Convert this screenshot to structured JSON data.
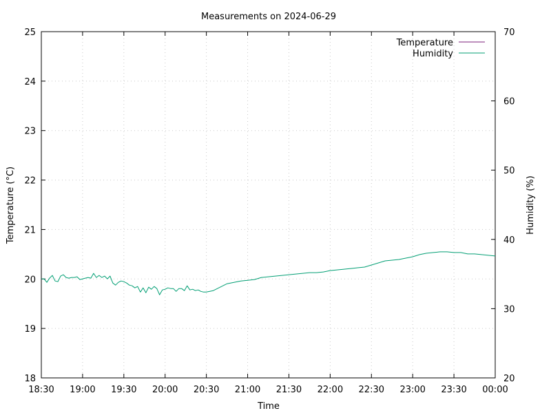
{
  "chart_data": {
    "type": "line",
    "title": "Measurements on 2024-06-29",
    "xlabel": "Time",
    "ylabel": "Temperature (°C)",
    "y2label": "Humidity (%)",
    "x_ticks": [
      "18:30",
      "19:00",
      "19:30",
      "20:00",
      "20:30",
      "21:00",
      "21:30",
      "22:00",
      "22:30",
      "23:00",
      "23:30",
      "00:00"
    ],
    "x_range": [
      "18:30",
      "00:00"
    ],
    "ylim": [
      18,
      25
    ],
    "y_ticks": [
      18,
      19,
      20,
      21,
      22,
      23,
      24,
      25
    ],
    "y2lim": [
      20,
      70
    ],
    "y2_ticks": [
      20,
      30,
      40,
      50,
      60,
      70
    ],
    "grid": true,
    "legend_position": "top-right",
    "series": [
      {
        "name": "Temperature",
        "axis": "left",
        "color": "#7b1e7a",
        "x": [],
        "values": []
      },
      {
        "name": "Humidity",
        "axis": "right",
        "color": "#009e73",
        "x": [
          "18:30",
          "18:32",
          "18:34",
          "18:36",
          "18:38",
          "18:40",
          "18:42",
          "18:44",
          "18:46",
          "18:48",
          "18:50",
          "18:52",
          "18:54",
          "18:56",
          "18:58",
          "19:00",
          "19:02",
          "19:04",
          "19:06",
          "19:08",
          "19:10",
          "19:12",
          "19:14",
          "19:16",
          "19:18",
          "19:20",
          "19:22",
          "19:24",
          "19:26",
          "19:28",
          "19:30",
          "19:32",
          "19:34",
          "19:36",
          "19:38",
          "19:40",
          "19:42",
          "19:44",
          "19:46",
          "19:48",
          "19:50",
          "19:52",
          "19:54",
          "19:56",
          "19:58",
          "20:00",
          "20:02",
          "20:04",
          "20:06",
          "20:08",
          "20:10",
          "20:12",
          "20:14",
          "20:16",
          "20:18",
          "20:20",
          "20:22",
          "20:24",
          "20:26",
          "20:28",
          "20:30",
          "20:35",
          "20:40",
          "20:45",
          "20:50",
          "20:55",
          "21:00",
          "21:05",
          "21:10",
          "21:15",
          "21:20",
          "21:25",
          "21:30",
          "21:35",
          "21:40",
          "21:45",
          "21:50",
          "21:55",
          "22:00",
          "22:05",
          "22:10",
          "22:15",
          "22:20",
          "22:25",
          "22:30",
          "22:35",
          "22:40",
          "22:45",
          "22:50",
          "22:55",
          "23:00",
          "23:05",
          "23:10",
          "23:15",
          "23:20",
          "23:25",
          "23:30",
          "23:35",
          "23:40",
          "23:45",
          "23:50",
          "23:55",
          "00:00"
        ],
        "values": [
          34.3,
          34.3,
          33.8,
          34.4,
          34.8,
          34.0,
          33.9,
          34.7,
          34.9,
          34.5,
          34.4,
          34.5,
          34.5,
          34.6,
          34.2,
          34.3,
          34.4,
          34.5,
          34.4,
          35.1,
          34.5,
          34.8,
          34.5,
          34.7,
          34.3,
          34.7,
          33.7,
          33.4,
          33.8,
          34.0,
          33.9,
          33.7,
          33.4,
          33.3,
          33.0,
          33.2,
          32.4,
          33.0,
          32.3,
          33.1,
          32.8,
          33.2,
          32.9,
          32.0,
          32.7,
          32.8,
          33.0,
          32.9,
          32.9,
          32.5,
          32.9,
          32.9,
          32.6,
          33.3,
          32.7,
          32.8,
          32.6,
          32.7,
          32.5,
          32.4,
          32.4,
          32.6,
          33.1,
          33.6,
          33.8,
          34.0,
          34.1,
          34.2,
          34.5,
          34.6,
          34.7,
          34.8,
          34.9,
          35.0,
          35.1,
          35.2,
          35.2,
          35.3,
          35.5,
          35.6,
          35.7,
          35.8,
          35.9,
          36.0,
          36.3,
          36.6,
          36.9,
          37.0,
          37.1,
          37.3,
          37.5,
          37.8,
          38.0,
          38.1,
          38.2,
          38.2,
          38.1,
          38.1,
          37.9,
          37.9,
          37.8,
          37.7,
          37.6
        ]
      }
    ]
  }
}
